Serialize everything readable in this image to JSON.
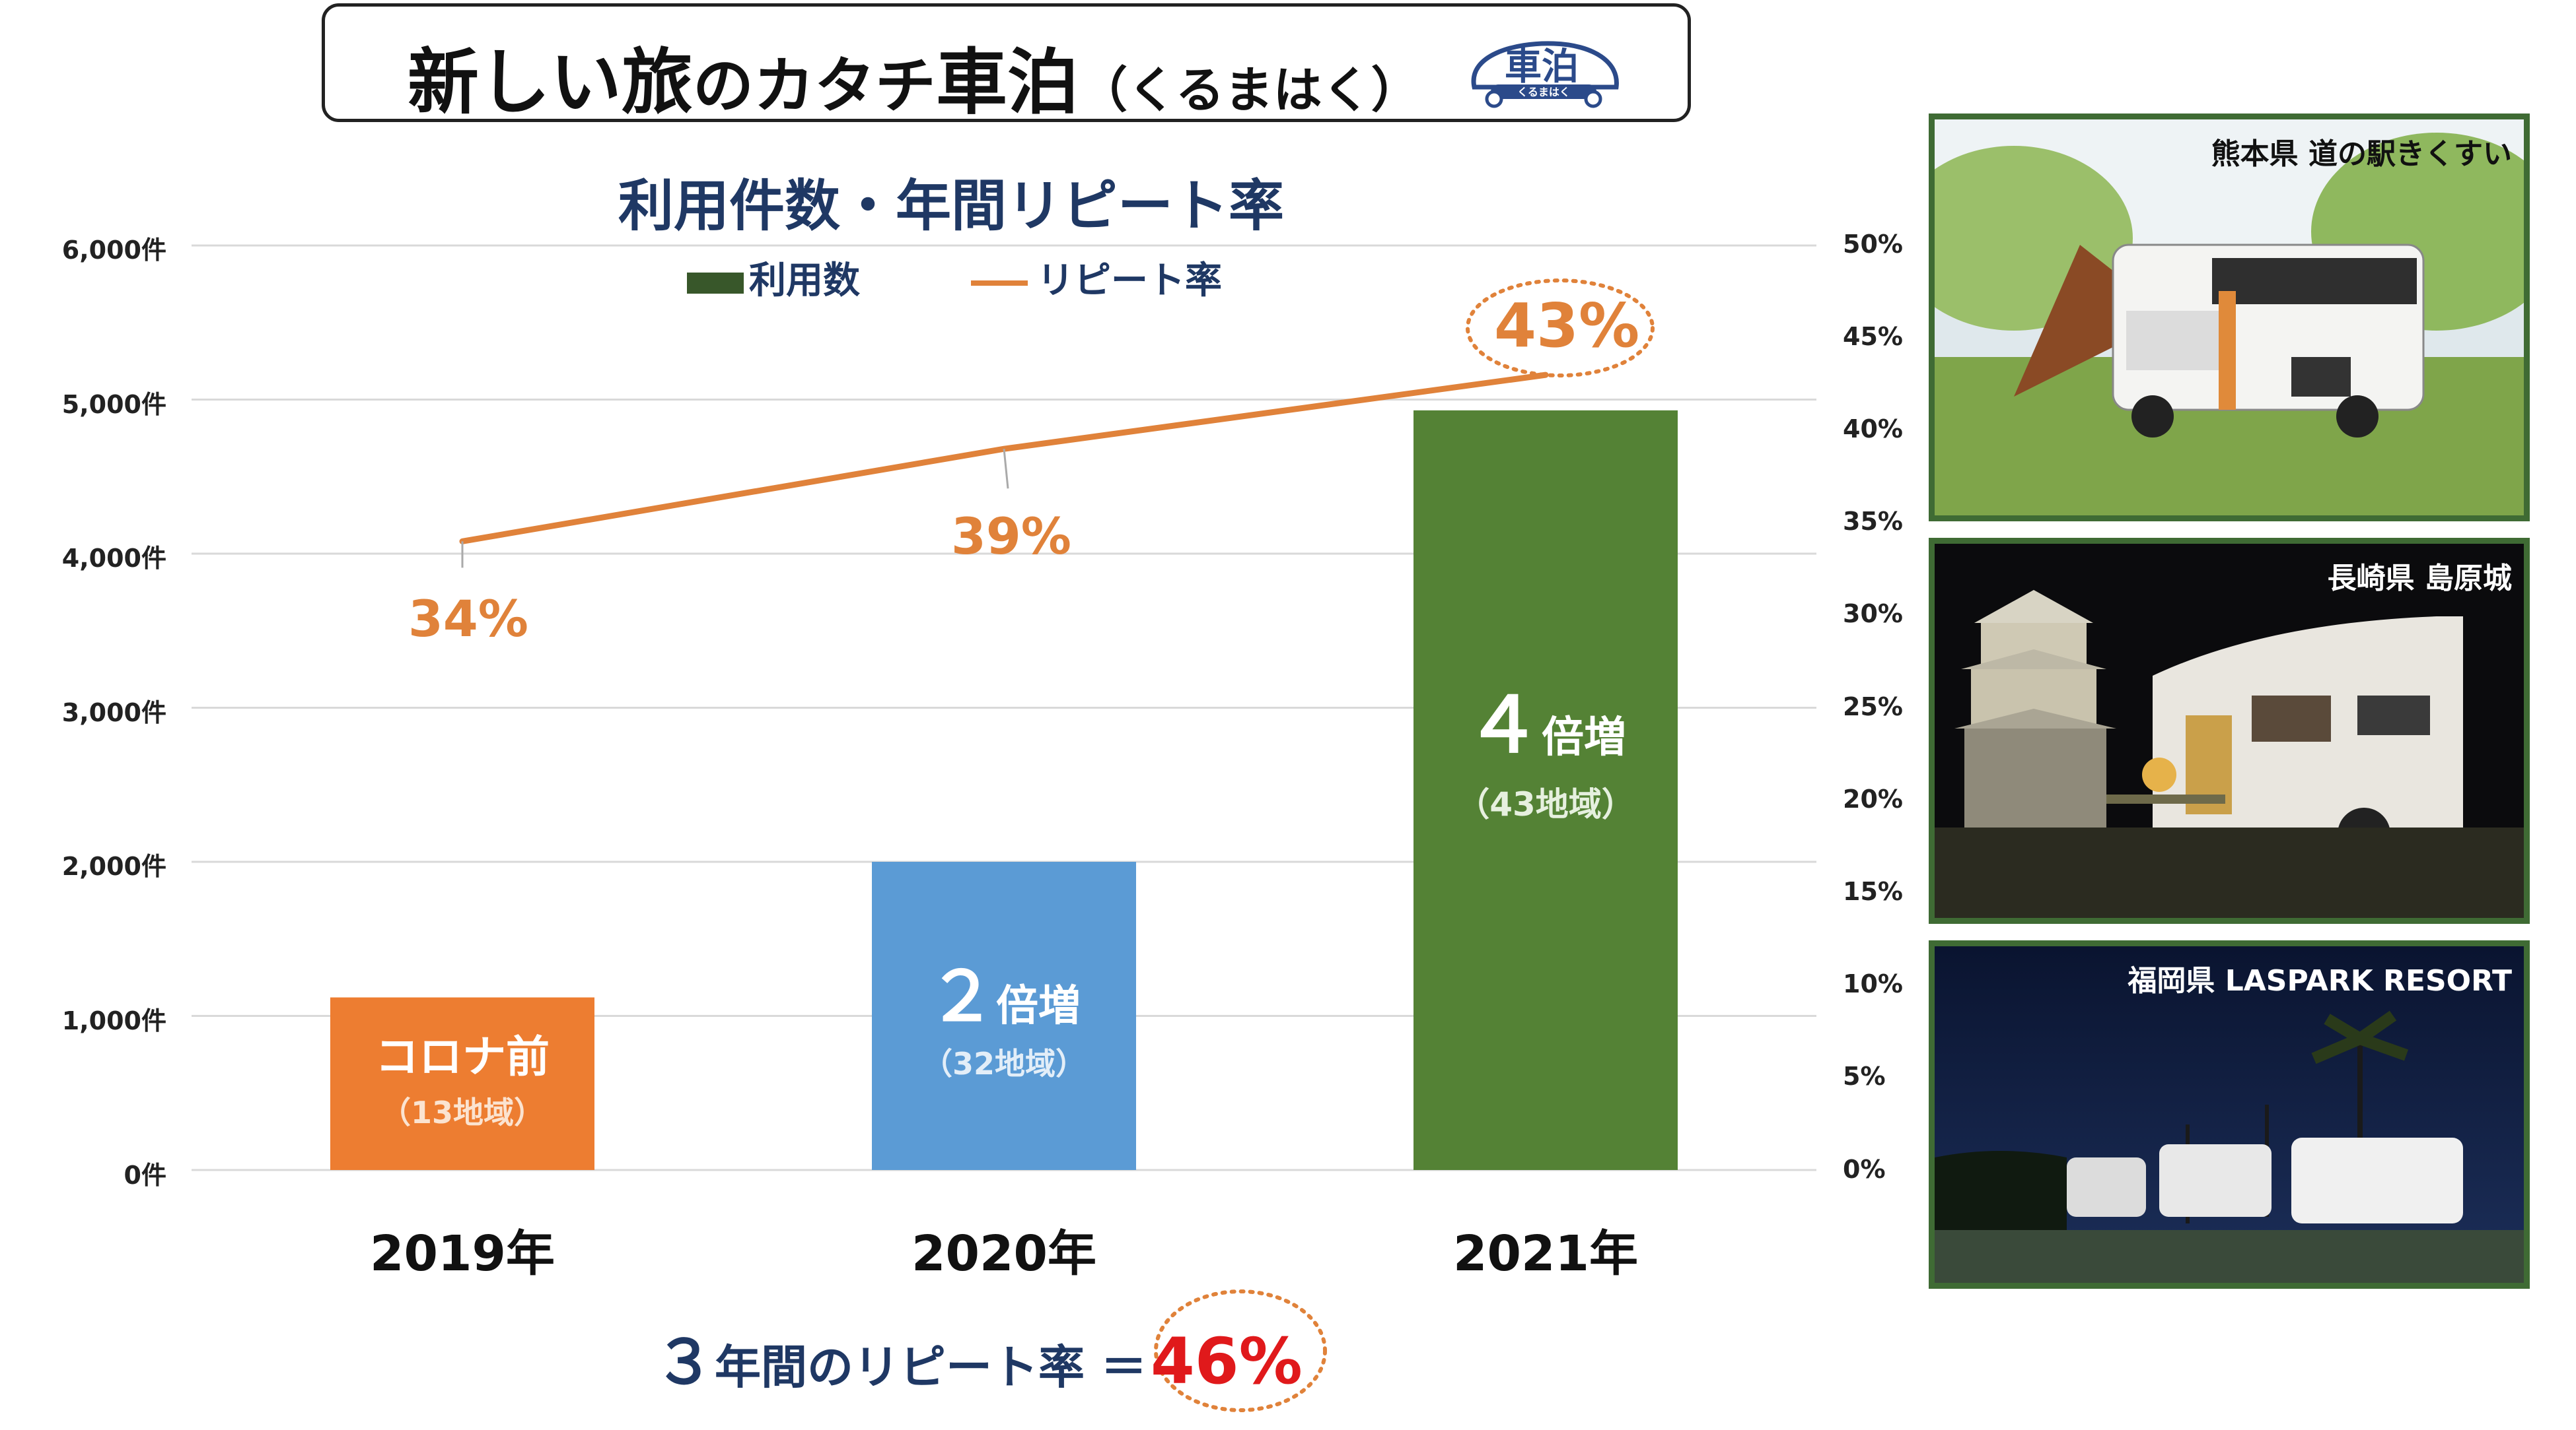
{
  "header": {
    "title_part1": "新しい旅",
    "title_part2": "のカタチ",
    "title_part3": "車泊",
    "title_reading": "（くるまはく）",
    "logo_text": "車泊",
    "logo_sub": "くるまはく"
  },
  "footer": {
    "number": "３",
    "text": "年間のリピート率 ＝",
    "value": "46%"
  },
  "photos": [
    {
      "caption": "熊本県 道の駅きくすい"
    },
    {
      "caption": "長崎県 島原城"
    },
    {
      "caption": "福岡県 LASPARK RESORT"
    }
  ],
  "colors": {
    "title": "#1f3864",
    "line": "#e0823a",
    "grid": "#d9d9d9",
    "highlight": "#e0191b"
  },
  "chart_data": {
    "type": "bar+line",
    "title": "利用件数・年間リピート率",
    "categories": [
      "2019年",
      "2020年",
      "2021年"
    ],
    "legend": [
      "利用数",
      "リピート率"
    ],
    "y_left": {
      "ylim": [
        0,
        6000
      ],
      "ticks": [
        0,
        1000,
        2000,
        3000,
        4000,
        5000,
        6000
      ],
      "tick_labels": [
        "0件",
        "1,000件",
        "2,000件",
        "3,000件",
        "4,000件",
        "5,000件",
        "6,000件"
      ]
    },
    "y_right": {
      "ylim": [
        0,
        50
      ],
      "ticks": [
        0,
        5,
        10,
        15,
        20,
        25,
        30,
        35,
        40,
        45,
        50
      ],
      "tick_labels": [
        "0%",
        "5%",
        "10%",
        "15%",
        "20%",
        "25%",
        "30%",
        "35%",
        "40%",
        "45%",
        "50%"
      ]
    },
    "series": [
      {
        "name": "利用数",
        "type": "bar",
        "values": [
          1120,
          2000,
          4930
        ],
        "colors": [
          "#ed7d31",
          "#5b9bd5",
          "#548235"
        ],
        "labels": [
          {
            "main": "コロナ前",
            "sub": "（13地域）"
          },
          {
            "num": "２",
            "main": "倍増",
            "sub": "（32地域）"
          },
          {
            "num": "４",
            "main": "倍増",
            "sub": "（43地域）"
          }
        ]
      },
      {
        "name": "リピート率",
        "type": "line",
        "values": [
          34,
          39,
          43
        ],
        "labels": [
          "34%",
          "39%",
          "43%"
        ]
      }
    ]
  }
}
